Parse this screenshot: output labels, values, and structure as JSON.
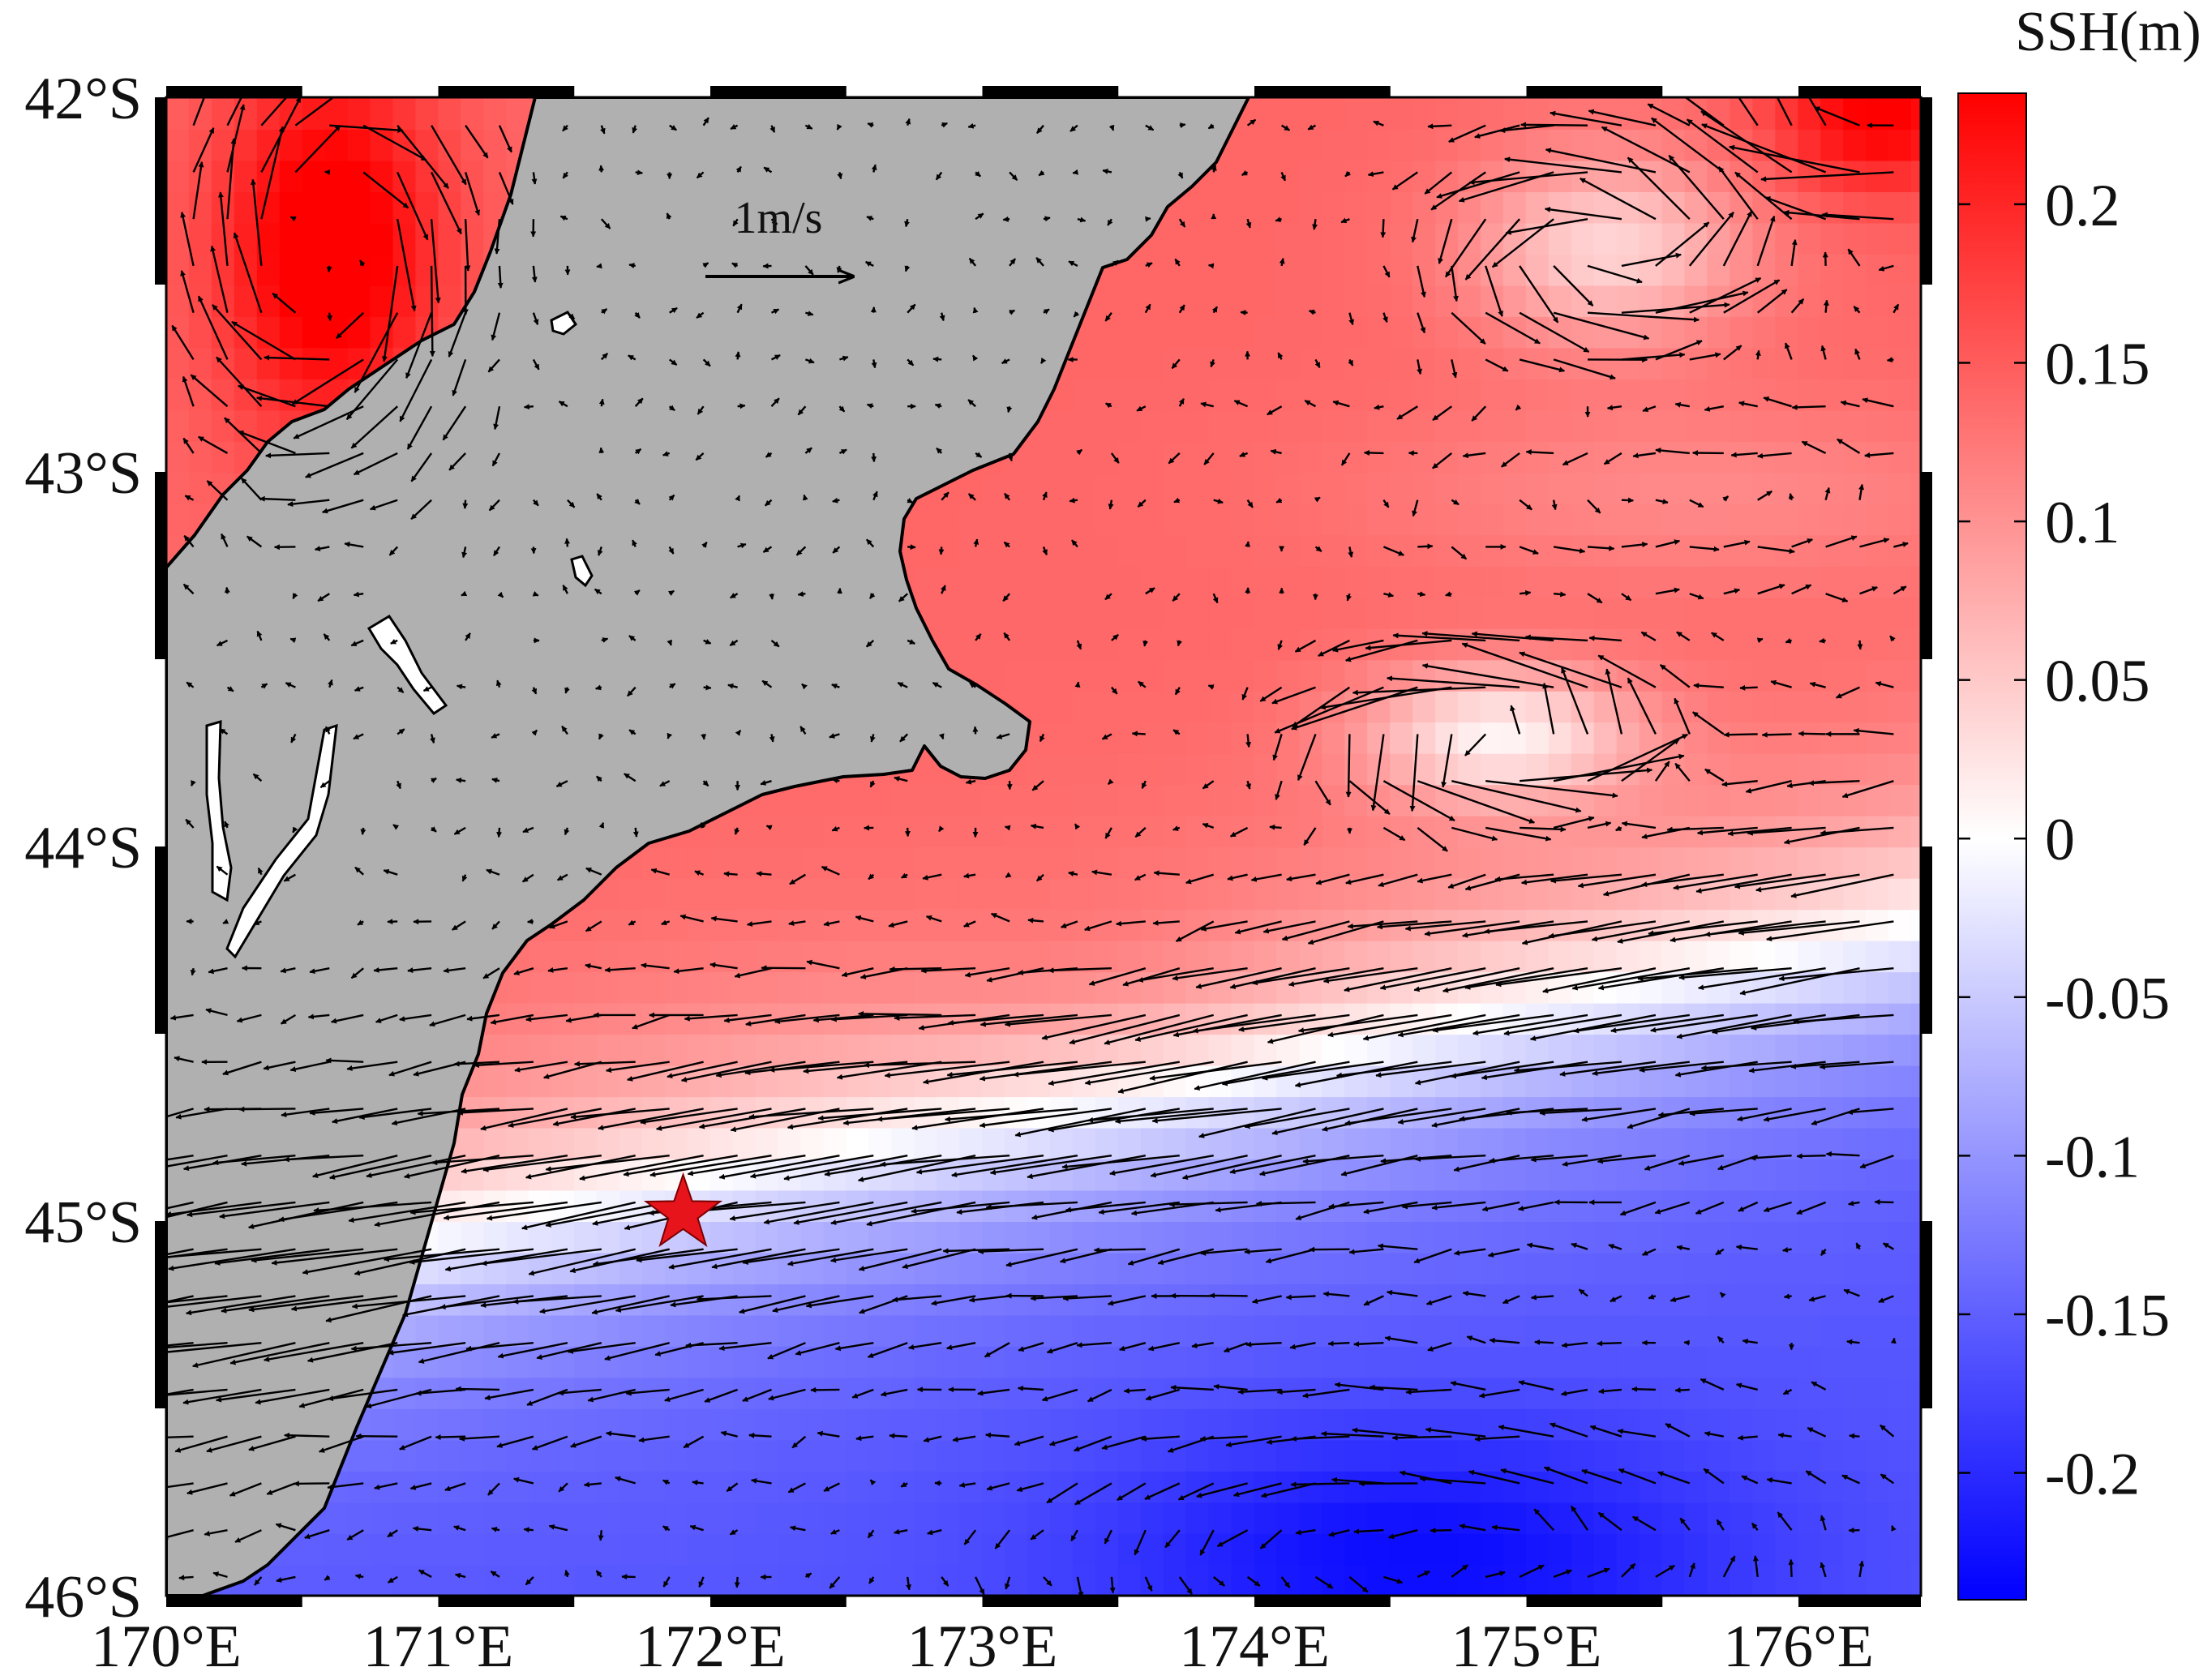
{
  "map": {
    "lon_range": [
      170,
      176.45
    ],
    "lat_range": [
      -46,
      -42
    ],
    "lon_ticks": [
      {
        "value": 170,
        "label": "170°E"
      },
      {
        "value": 171,
        "label": "171°E"
      },
      {
        "value": 172,
        "label": "172°E"
      },
      {
        "value": 173,
        "label": "173°E"
      },
      {
        "value": 174,
        "label": "174°E"
      },
      {
        "value": 175,
        "label": "175°E"
      },
      {
        "value": 176,
        "label": "176°E"
      }
    ],
    "lat_ticks": [
      {
        "value": -42,
        "label": "42°S"
      },
      {
        "value": -43,
        "label": "43°S"
      },
      {
        "value": -44,
        "label": "44°S"
      },
      {
        "value": -45,
        "label": "45°S"
      },
      {
        "value": -46,
        "label": "46°S"
      }
    ],
    "land_color": "#b0b0b0",
    "scale_arrow": {
      "label": "1m/s",
      "speed": 1.0,
      "lon": 171.98,
      "lat": -42.48
    },
    "marker": {
      "type": "star",
      "lon": 171.9,
      "lat": -44.98,
      "color": "#e8141c"
    },
    "ssh_field_note_values": {
      "north_coast": 0.12,
      "offshore_band": 0.1,
      "northern_cyclonic_eddy": -0.02,
      "central_cyclonic_eddy": -0.03,
      "southern_trough": -0.22
    },
    "vector_field": "surface geostrophic current vectors"
  },
  "colorbar": {
    "title": "SSH(m)",
    "range": [
      -0.24,
      0.235
    ],
    "colormap": [
      "#0000ff",
      "#ffffff",
      "#ff0000"
    ],
    "ticks": [
      {
        "value": 0.2,
        "label": "0.2"
      },
      {
        "value": 0.15,
        "label": "0.15"
      },
      {
        "value": 0.1,
        "label": "0.1"
      },
      {
        "value": 0.05,
        "label": "0.05"
      },
      {
        "value": 0,
        "label": "0"
      },
      {
        "value": -0.05,
        "label": "-0.05"
      },
      {
        "value": -0.1,
        "label": "-0.1"
      },
      {
        "value": -0.15,
        "label": "-0.15"
      },
      {
        "value": -0.2,
        "label": "-0.2"
      }
    ]
  }
}
